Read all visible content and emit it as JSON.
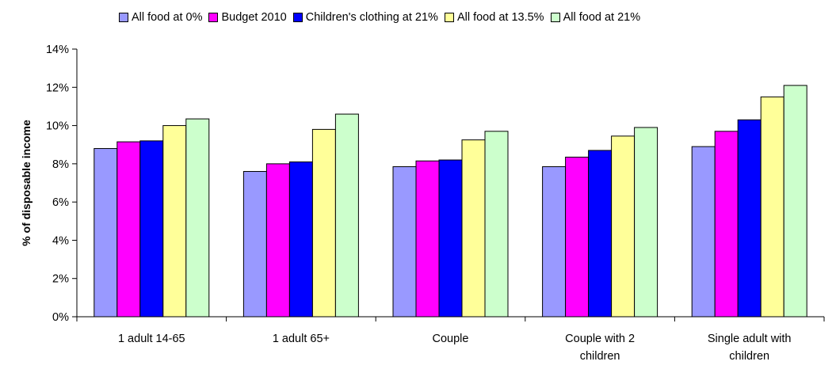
{
  "chart_data": {
    "type": "bar",
    "title": "",
    "xlabel": "",
    "ylabel": "% of disposable income",
    "ylim": [
      0,
      14
    ],
    "yticks": [
      "0%",
      "2%",
      "4%",
      "6%",
      "8%",
      "10%",
      "12%",
      "14%"
    ],
    "legend_position": "top",
    "grid": false,
    "categories": [
      [
        "1 adult 14-65"
      ],
      [
        "1 adult 65+"
      ],
      [
        "Couple"
      ],
      [
        "Couple with 2",
        "children"
      ],
      [
        "Single adult with",
        "children"
      ]
    ],
    "series": [
      {
        "name": "All food at 0%",
        "color": "#9999FF",
        "values": [
          8.8,
          7.6,
          7.85,
          7.85,
          8.9
        ]
      },
      {
        "name": "Budget 2010",
        "color": "#FF00FF",
        "values": [
          9.15,
          8.0,
          8.15,
          8.35,
          9.7
        ]
      },
      {
        "name": "Children's clothing at 21%",
        "color": "#0000FF",
        "values": [
          9.2,
          8.1,
          8.2,
          8.7,
          10.3
        ]
      },
      {
        "name": "All food at 13.5%",
        "color": "#FFFF99",
        "values": [
          10.0,
          9.8,
          9.25,
          9.45,
          11.5
        ]
      },
      {
        "name": "All food at 21%",
        "color": "#CCFFCC",
        "values": [
          10.35,
          10.6,
          9.7,
          9.9,
          12.1
        ]
      }
    ]
  }
}
